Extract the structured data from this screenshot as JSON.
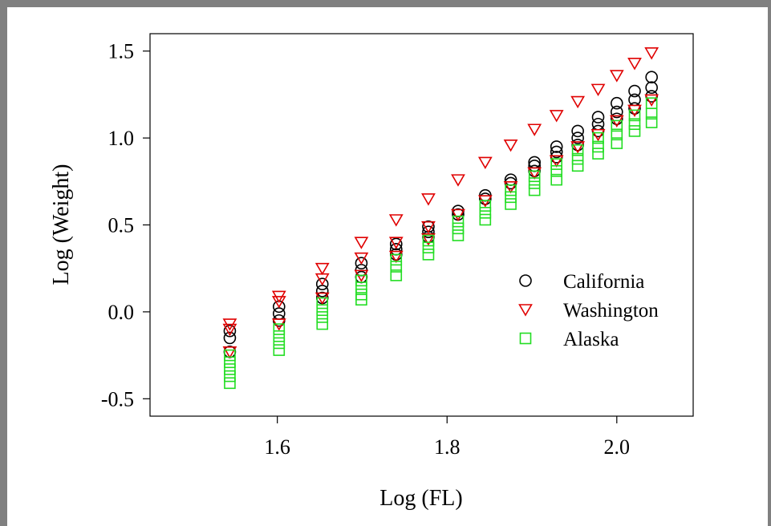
{
  "chart_data": {
    "type": "scatter",
    "title": "",
    "xlabel": "Log (FL)",
    "ylabel": "Log (Weight)",
    "xlim": [
      1.45,
      2.09
    ],
    "ylim": [
      -0.6,
      1.6
    ],
    "xticks": [
      1.6,
      1.8,
      2.0
    ],
    "xtick_labels": [
      "1.6",
      "1.8",
      "2.0"
    ],
    "yticks": [
      -0.5,
      0.0,
      0.5,
      1.0,
      1.5
    ],
    "ytick_labels": [
      "-0.5",
      "0.0",
      "0.5",
      "1.0",
      "1.5"
    ],
    "legend_position": "right",
    "grid": false,
    "series": [
      {
        "name": "California",
        "marker": "circle",
        "color": "#000000",
        "points": [
          [
            1.544,
            -0.11
          ],
          [
            1.544,
            -0.15
          ],
          [
            1.544,
            -0.23
          ],
          [
            1.602,
            0.03
          ],
          [
            1.602,
            -0.01
          ],
          [
            1.602,
            -0.05
          ],
          [
            1.653,
            0.16
          ],
          [
            1.653,
            0.12
          ],
          [
            1.653,
            0.08
          ],
          [
            1.699,
            0.28
          ],
          [
            1.699,
            0.24
          ],
          [
            1.699,
            0.2
          ],
          [
            1.74,
            0.39
          ],
          [
            1.74,
            0.36
          ],
          [
            1.74,
            0.33
          ],
          [
            1.778,
            0.49
          ],
          [
            1.778,
            0.46
          ],
          [
            1.778,
            0.43
          ],
          [
            1.813,
            0.58
          ],
          [
            1.813,
            0.56
          ],
          [
            1.845,
            0.67
          ],
          [
            1.845,
            0.65
          ],
          [
            1.875,
            0.76
          ],
          [
            1.875,
            0.74
          ],
          [
            1.903,
            0.86
          ],
          [
            1.903,
            0.84
          ],
          [
            1.903,
            0.81
          ],
          [
            1.929,
            0.95
          ],
          [
            1.929,
            0.92
          ],
          [
            1.929,
            0.89
          ],
          [
            1.954,
            1.04
          ],
          [
            1.954,
            1.0
          ],
          [
            1.954,
            0.96
          ],
          [
            1.978,
            1.12
          ],
          [
            1.978,
            1.08
          ],
          [
            1.978,
            1.04
          ],
          [
            2.0,
            1.2
          ],
          [
            2.0,
            1.15
          ],
          [
            2.0,
            1.11
          ],
          [
            2.021,
            1.27
          ],
          [
            2.021,
            1.22
          ],
          [
            2.021,
            1.17
          ],
          [
            2.041,
            1.35
          ],
          [
            2.041,
            1.29
          ],
          [
            2.041,
            1.24
          ]
        ]
      },
      {
        "name": "Washington",
        "marker": "triangle-down",
        "color": "#e00000",
        "points": [
          [
            1.544,
            -0.07
          ],
          [
            1.544,
            -0.1
          ],
          [
            1.544,
            -0.23
          ],
          [
            1.602,
            0.09
          ],
          [
            1.602,
            0.06
          ],
          [
            1.602,
            -0.07
          ],
          [
            1.653,
            0.25
          ],
          [
            1.653,
            0.19
          ],
          [
            1.653,
            0.08
          ],
          [
            1.699,
            0.4
          ],
          [
            1.699,
            0.31
          ],
          [
            1.699,
            0.21
          ],
          [
            1.74,
            0.53
          ],
          [
            1.74,
            0.4
          ],
          [
            1.74,
            0.32
          ],
          [
            1.778,
            0.65
          ],
          [
            1.778,
            0.49
          ],
          [
            1.778,
            0.42
          ],
          [
            1.813,
            0.76
          ],
          [
            1.813,
            0.56
          ],
          [
            1.845,
            0.86
          ],
          [
            1.845,
            0.64
          ],
          [
            1.875,
            0.96
          ],
          [
            1.875,
            0.72
          ],
          [
            1.903,
            1.05
          ],
          [
            1.903,
            0.8
          ],
          [
            1.929,
            1.13
          ],
          [
            1.929,
            0.87
          ],
          [
            1.954,
            1.21
          ],
          [
            1.954,
            0.95
          ],
          [
            1.978,
            1.28
          ],
          [
            1.978,
            1.02
          ],
          [
            2.0,
            1.36
          ],
          [
            2.0,
            1.1
          ],
          [
            2.021,
            1.43
          ],
          [
            2.021,
            1.16
          ],
          [
            2.041,
            1.49
          ],
          [
            2.041,
            1.22
          ]
        ]
      },
      {
        "name": "Alaska",
        "marker": "square",
        "color": "#22dd22",
        "points": [
          [
            1.544,
            -0.25
          ],
          [
            1.544,
            -0.29
          ],
          [
            1.544,
            -0.33
          ],
          [
            1.544,
            -0.37
          ],
          [
            1.544,
            -0.41
          ],
          [
            1.602,
            -0.1
          ],
          [
            1.602,
            -0.14
          ],
          [
            1.602,
            -0.18
          ],
          [
            1.602,
            -0.22
          ],
          [
            1.653,
            0.05
          ],
          [
            1.653,
            0.01
          ],
          [
            1.653,
            -0.03
          ],
          [
            1.653,
            -0.07
          ],
          [
            1.699,
            0.18
          ],
          [
            1.699,
            0.14
          ],
          [
            1.699,
            0.1
          ],
          [
            1.699,
            0.07
          ],
          [
            1.74,
            0.3
          ],
          [
            1.74,
            0.26
          ],
          [
            1.74,
            0.21
          ],
          [
            1.778,
            0.41
          ],
          [
            1.778,
            0.37
          ],
          [
            1.778,
            0.33
          ],
          [
            1.813,
            0.52
          ],
          [
            1.813,
            0.48
          ],
          [
            1.813,
            0.44
          ],
          [
            1.845,
            0.61
          ],
          [
            1.845,
            0.57
          ],
          [
            1.845,
            0.53
          ],
          [
            1.875,
            0.7
          ],
          [
            1.875,
            0.66
          ],
          [
            1.875,
            0.62
          ],
          [
            1.903,
            0.78
          ],
          [
            1.903,
            0.74
          ],
          [
            1.903,
            0.7
          ],
          [
            1.929,
            0.85
          ],
          [
            1.929,
            0.81
          ],
          [
            1.929,
            0.76
          ],
          [
            1.954,
            0.93
          ],
          [
            1.954,
            0.88
          ],
          [
            1.954,
            0.84
          ],
          [
            1.978,
            1.0
          ],
          [
            1.978,
            0.95
          ],
          [
            1.978,
            0.91
          ],
          [
            2.0,
            1.07
          ],
          [
            2.0,
            1.02
          ],
          [
            2.0,
            0.97
          ],
          [
            2.021,
            1.13
          ],
          [
            2.021,
            1.08
          ],
          [
            2.021,
            1.04
          ],
          [
            2.041,
            1.2
          ],
          [
            2.041,
            1.14
          ],
          [
            2.041,
            1.09
          ]
        ]
      }
    ]
  }
}
